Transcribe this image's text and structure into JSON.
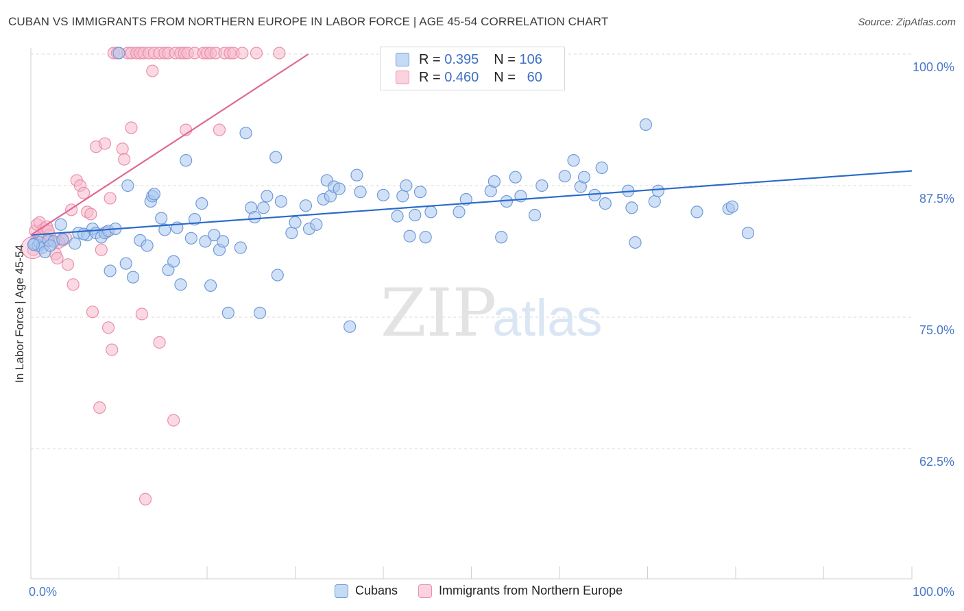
{
  "title": "CUBAN VS IMMIGRANTS FROM NORTHERN EUROPE IN LABOR FORCE | AGE 45-54 CORRELATION CHART",
  "source": "Source: ZipAtlas.com",
  "watermark": {
    "zip": "ZIP",
    "atlas": "atlas"
  },
  "legend": {
    "rows": [
      {
        "r_label": "R =",
        "r_value": "0.395",
        "n_label": "N =",
        "n_value": "106"
      },
      {
        "r_label": "R =",
        "r_value": "0.460",
        "n_label": "N =",
        "n_value": "60"
      }
    ]
  },
  "colors": {
    "cubans_fill": "#a9c8f0",
    "cubans_stroke": "#6f9ad8",
    "cubans_line": "#2a6bc9",
    "ne_fill": "#f6b9cc",
    "ne_stroke": "#ec8fab",
    "ne_line": "#e06890",
    "grid": "#d8d8d8",
    "tick_text": "#4a78c8"
  },
  "chart_data": {
    "type": "scatter",
    "title": "CUBAN VS IMMIGRANTS FROM NORTHERN EUROPE IN LABOR FORCE | AGE 45-54 CORRELATION CHART",
    "xlabel": "",
    "ylabel": "In Labor Force | Age 45-54",
    "xlim": [
      0,
      100
    ],
    "ylim": [
      51,
      101.5
    ],
    "x_ticks": [
      "0.0%",
      "100.0%"
    ],
    "y_ticks": [
      {
        "value": 100,
        "label": "100.0%"
      },
      {
        "value": 87.5,
        "label": "87.5%"
      },
      {
        "value": 75,
        "label": "75.0%"
      },
      {
        "value": 62.5,
        "label": "62.5%"
      }
    ],
    "grid": true,
    "legend_position": "top-center",
    "series": [
      {
        "name": "Cubans",
        "trend": {
          "x": [
            0,
            100
          ],
          "y": [
            82.8,
            88.9
          ]
        },
        "points": [
          [
            0.4,
            82.0
          ],
          [
            0.8,
            81.8
          ],
          [
            1.0,
            82.1
          ],
          [
            1.3,
            81.6
          ],
          [
            1.6,
            81.2
          ],
          [
            2.0,
            82.3
          ],
          [
            2.6,
            82.2
          ],
          [
            3.4,
            83.8
          ],
          [
            3.6,
            82.4
          ],
          [
            5.0,
            82.0
          ],
          [
            5.4,
            83.0
          ],
          [
            6.4,
            82.8
          ],
          [
            7.0,
            83.4
          ],
          [
            7.4,
            83.0
          ],
          [
            8.0,
            82.6
          ],
          [
            8.4,
            83.0
          ],
          [
            8.8,
            83.2
          ],
          [
            9.6,
            83.4
          ],
          [
            9.0,
            79.4
          ],
          [
            10.8,
            80.1
          ],
          [
            11.0,
            87.5
          ],
          [
            11.6,
            78.8
          ],
          [
            12.4,
            82.3
          ],
          [
            13.2,
            81.8
          ],
          [
            13.6,
            86.0
          ],
          [
            13.8,
            86.5
          ],
          [
            14.0,
            86.7
          ],
          [
            14.8,
            84.4
          ],
          [
            15.2,
            83.3
          ],
          [
            15.6,
            79.5
          ],
          [
            16.2,
            80.3
          ],
          [
            16.6,
            83.5
          ],
          [
            17.0,
            78.1
          ],
          [
            17.6,
            89.9
          ],
          [
            18.2,
            82.5
          ],
          [
            18.6,
            84.3
          ],
          [
            19.4,
            85.8
          ],
          [
            19.8,
            82.2
          ],
          [
            20.4,
            78.0
          ],
          [
            20.8,
            82.8
          ],
          [
            21.4,
            81.4
          ],
          [
            21.8,
            82.2
          ],
          [
            22.4,
            75.4
          ],
          [
            23.8,
            81.6
          ],
          [
            24.4,
            92.5
          ],
          [
            25.0,
            85.4
          ],
          [
            25.4,
            84.5
          ],
          [
            26.0,
            75.4
          ],
          [
            26.4,
            85.4
          ],
          [
            26.8,
            86.5
          ],
          [
            27.8,
            90.2
          ],
          [
            28.0,
            79.0
          ],
          [
            28.4,
            86.0
          ],
          [
            29.6,
            83.0
          ],
          [
            30.0,
            84.0
          ],
          [
            31.2,
            85.6
          ],
          [
            31.6,
            83.4
          ],
          [
            32.4,
            83.8
          ],
          [
            33.2,
            86.2
          ],
          [
            33.6,
            88.0
          ],
          [
            34.0,
            86.5
          ],
          [
            34.4,
            87.4
          ],
          [
            35.0,
            87.2
          ],
          [
            36.2,
            74.1
          ],
          [
            37.0,
            88.5
          ],
          [
            37.4,
            86.9
          ],
          [
            40.0,
            86.6
          ],
          [
            41.6,
            84.6
          ],
          [
            42.2,
            86.5
          ],
          [
            42.6,
            87.5
          ],
          [
            43.0,
            82.7
          ],
          [
            43.6,
            84.7
          ],
          [
            44.2,
            86.9
          ],
          [
            44.8,
            82.6
          ],
          [
            45.4,
            85.0
          ],
          [
            48.6,
            85.0
          ],
          [
            49.4,
            86.2
          ],
          [
            52.2,
            87.0
          ],
          [
            52.6,
            87.9
          ],
          [
            53.4,
            82.6
          ],
          [
            54.0,
            86.0
          ],
          [
            55.0,
            88.3
          ],
          [
            55.6,
            86.5
          ],
          [
            57.2,
            84.7
          ],
          [
            58.0,
            87.5
          ],
          [
            60.6,
            88.4
          ],
          [
            61.6,
            89.9
          ],
          [
            62.4,
            87.4
          ],
          [
            62.8,
            88.3
          ],
          [
            64.0,
            86.6
          ],
          [
            64.8,
            89.2
          ],
          [
            65.2,
            85.8
          ],
          [
            67.8,
            87.0
          ],
          [
            68.2,
            85.4
          ],
          [
            68.6,
            82.1
          ],
          [
            69.8,
            93.3
          ],
          [
            70.8,
            86.0
          ],
          [
            71.2,
            87.0
          ],
          [
            75.6,
            85.0
          ],
          [
            79.2,
            85.3
          ],
          [
            79.6,
            85.5
          ],
          [
            81.4,
            83.0
          ],
          [
            10.0,
            100.1
          ],
          [
            0.3,
            81.9
          ],
          [
            2.2,
            81.8
          ],
          [
            6.0,
            82.9
          ]
        ]
      },
      {
        "name": "Immigrants from Northern Europe",
        "trend": {
          "x": [
            0,
            31.5
          ],
          "y": [
            82.8,
            100.0
          ]
        },
        "points": [
          [
            0.3,
            81.4
          ],
          [
            0.5,
            83.2
          ],
          [
            0.7,
            83.8
          ],
          [
            1.0,
            84.0
          ],
          [
            1.2,
            82.6
          ],
          [
            1.5,
            83.4
          ],
          [
            1.8,
            83.6
          ],
          [
            2.1,
            82.8
          ],
          [
            2.4,
            82.2
          ],
          [
            2.8,
            81.0
          ],
          [
            3.0,
            80.6
          ],
          [
            3.6,
            82.3
          ],
          [
            4.0,
            82.5
          ],
          [
            4.2,
            80.0
          ],
          [
            4.6,
            85.2
          ],
          [
            4.8,
            78.1
          ],
          [
            5.2,
            88.0
          ],
          [
            5.6,
            87.5
          ],
          [
            6.0,
            86.8
          ],
          [
            6.4,
            85.0
          ],
          [
            6.8,
            84.8
          ],
          [
            7.0,
            75.5
          ],
          [
            7.4,
            91.2
          ],
          [
            7.8,
            66.4
          ],
          [
            8.0,
            81.4
          ],
          [
            8.4,
            91.5
          ],
          [
            8.8,
            74.0
          ],
          [
            9.0,
            86.3
          ],
          [
            9.2,
            71.9
          ],
          [
            9.4,
            100.1
          ],
          [
            9.8,
            100.1
          ],
          [
            10.4,
            91.0
          ],
          [
            10.6,
            90.0
          ],
          [
            11.0,
            100.1
          ],
          [
            11.4,
            100.1
          ],
          [
            12.0,
            100.1
          ],
          [
            12.4,
            100.1
          ],
          [
            12.6,
            75.3
          ],
          [
            12.8,
            100.1
          ],
          [
            13.4,
            100.1
          ],
          [
            13.8,
            98.4
          ],
          [
            14.0,
            100.1
          ],
          [
            14.6,
            100.1
          ],
          [
            15.2,
            100.1
          ],
          [
            15.6,
            100.1
          ],
          [
            16.4,
            100.1
          ],
          [
            17.0,
            100.1
          ],
          [
            17.4,
            100.1
          ],
          [
            17.8,
            100.1
          ],
          [
            18.6,
            100.1
          ],
          [
            19.6,
            100.1
          ],
          [
            20.0,
            100.1
          ],
          [
            20.4,
            100.1
          ],
          [
            21.0,
            100.1
          ],
          [
            22.0,
            100.1
          ],
          [
            22.6,
            100.1
          ],
          [
            23.0,
            100.1
          ],
          [
            24.0,
            100.1
          ],
          [
            25.6,
            100.1
          ],
          [
            28.2,
            100.1
          ]
        ]
      }
    ],
    "extra_ne_points": [
      [
        13.0,
        57.7
      ],
      [
        14.6,
        72.6
      ],
      [
        16.2,
        65.2
      ],
      [
        17.6,
        92.8
      ],
      [
        21.4,
        92.8
      ],
      [
        11.4,
        93.0
      ],
      [
        2.0,
        83.2
      ],
      [
        3.2,
        82.1
      ],
      [
        8.6,
        83.1
      ],
      [
        1.8,
        82.3
      ]
    ]
  }
}
